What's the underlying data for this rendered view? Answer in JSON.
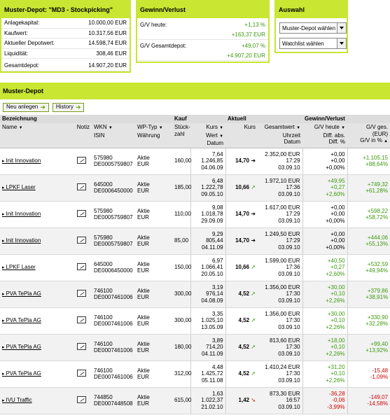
{
  "depot": {
    "title": "Muster-Depot: \"MD3 - Stockpicking\"",
    "rows": [
      {
        "label": "Anlagekapital:",
        "value": "10.000,00 EUR"
      },
      {
        "label": "Kaufwert:",
        "value": "10.317,56 EUR"
      },
      {
        "label": "Aktueller Depotwert:",
        "value": "14.598,74 EUR"
      },
      {
        "label": "Liquidität:",
        "value": "308,46 EUR"
      },
      {
        "label": "Gesamtdepot:",
        "value": "14.907,20 EUR"
      }
    ]
  },
  "gv": {
    "title": "Gewinn/Verlust",
    "heute_label": "G/V heute:",
    "heute_pct": "+1,13 %",
    "heute_abs": "+163,37 EUR",
    "gesamt_label": "G/V Gesamtdepot:",
    "gesamt_pct": "+49,07 %",
    "gesamt_abs": "+4.907,20 EUR"
  },
  "auswahl": {
    "title": "Auswahl",
    "select1": "Muster-Depot wählen",
    "select2": "Watchlist wählen"
  },
  "main": {
    "title": "Muster-Depot",
    "btn_new": "Neu anlegen",
    "btn_history": "History"
  },
  "cols": {
    "g_bez": "Bezeichnung",
    "g_kauf": "Kauf",
    "g_akt": "Aktuell",
    "g_gv": "Gewinn/Verlust",
    "name": "Name",
    "notiz": "Notiz",
    "wkn": "WKN",
    "isin": "ISIN",
    "wptyp": "WP-Typ",
    "waehrung": "Währung",
    "stueck": "Stück-",
    "zahl": "zahl",
    "kurs": "Kurs",
    "wert": "Wert",
    "datum": "Datum",
    "akurs": "Kurs",
    "gesamtwert": "Gesamtwert",
    "uhrzeit": "Uhrzeit",
    "adatum": "Datum",
    "gvheute": "G/V heute",
    "diffabs": "Diff. abs.",
    "diffpct": "Diff. %",
    "gvges": "G/V ges.",
    "gveur": "(EUR)",
    "gvpct": "G/V in %"
  },
  "positions": [
    {
      "name": "Init Innovation",
      "wkn": "575980",
      "isin": "DE0005759807",
      "typ": "Aktie",
      "cur": "EUR",
      "qty": "160,00",
      "bkurs": "7,64",
      "bwert": "1.246,85",
      "bdat": "04.06.09",
      "akurs": "14,70",
      "trend": "right",
      "gwert": "2.352,00 EUR",
      "zeit": "17:29",
      "adat": "03.09.10",
      "h1": "+0,00",
      "h2": "+0,00",
      "h3": "+0,00%",
      "g1": "+1.105,15",
      "g2": "+88,64%",
      "dir": "g"
    },
    {
      "name": "LPKF Laser",
      "wkn": "645000",
      "isin": "DE0006450000",
      "typ": "Aktie",
      "cur": "EUR",
      "qty": "185,00",
      "bkurs": "6,48",
      "bwert": "1.222,78",
      "bdat": "09.05.10",
      "akurs": "10,66",
      "trend": "up",
      "gwert": "1.972,10 EUR",
      "zeit": "17:36",
      "adat": "03.09.10",
      "h1": "+49,95",
      "h2": "+0,27",
      "h3": "+2,60%",
      "g1": "+749,32",
      "g2": "+61,28%",
      "dir": "g"
    },
    {
      "name": "Init Innovation",
      "wkn": "575980",
      "isin": "DE0005759807",
      "typ": "Aktie",
      "cur": "EUR",
      "qty": "110,00",
      "bkurs": "9,08",
      "bwert": "1.018,78",
      "bdat": "29.09.09",
      "akurs": "14,70",
      "trend": "right",
      "gwert": "1.617,00 EUR",
      "zeit": "17:29",
      "adat": "03.09.10",
      "h1": "+0,00",
      "h2": "+0,00",
      "h3": "+0,00%",
      "g1": "+598,22",
      "g2": "+58,72%",
      "dir": "g"
    },
    {
      "name": "Init Innovation",
      "wkn": "575980",
      "isin": "DE0005759807",
      "typ": "Aktie",
      "cur": "EUR",
      "qty": "85,00",
      "bkurs": "9,29",
      "bwert": "805,44",
      "bdat": "04.11.09",
      "akurs": "14,70",
      "trend": "right",
      "gwert": "1.249,50 EUR",
      "zeit": "17:29",
      "adat": "03.09.10",
      "h1": "+0,00",
      "h2": "+0,00",
      "h3": "+0,00%",
      "g1": "+444,06",
      "g2": "+55,13%",
      "dir": "g"
    },
    {
      "name": "LPKF Laser",
      "wkn": "645000",
      "isin": "DE0006450000",
      "typ": "Aktie",
      "cur": "EUR",
      "qty": "150,00",
      "bkurs": "6,97",
      "bwert": "1.066,41",
      "bdat": "20.05.10",
      "akurs": "10,66",
      "trend": "up",
      "gwert": "1.599,00 EUR",
      "zeit": "17:36",
      "adat": "03.09.10",
      "h1": "+40,50",
      "h2": "+0,27",
      "h3": "+2,60%",
      "g1": "+532,59",
      "g2": "+49,94%",
      "dir": "g"
    },
    {
      "name": "PVA TePla AG",
      "wkn": "746100",
      "isin": "DE0007461006",
      "typ": "Aktie",
      "cur": "EUR",
      "qty": "300,00",
      "bkurs": "3,19",
      "bwert": "976,14",
      "bdat": "04.08.09",
      "akurs": "4,52",
      "trend": "up",
      "gwert": "1.356,00 EUR",
      "zeit": "17:30",
      "adat": "03.09.10",
      "h1": "+30,00",
      "h2": "+0,10",
      "h3": "+2,26%",
      "g1": "+379,86",
      "g2": "+38,91%",
      "dir": "g"
    },
    {
      "name": "PVA TePla AG",
      "wkn": "746100",
      "isin": "DE0007461006",
      "typ": "Aktie",
      "cur": "EUR",
      "qty": "300,00",
      "bkurs": "3,35",
      "bwert": "1.025,10",
      "bdat": "13.05.09",
      "akurs": "4,52",
      "trend": "up",
      "gwert": "1.356,00 EUR",
      "zeit": "17:30",
      "adat": "03.09.10",
      "h1": "+30,00",
      "h2": "+0,10",
      "h3": "+2,26%",
      "g1": "+330,90",
      "g2": "+32,28%",
      "dir": "g"
    },
    {
      "name": "PVA TePla AG",
      "wkn": "746100",
      "isin": "DE0007461006",
      "typ": "Aktie",
      "cur": "EUR",
      "qty": "180,00",
      "bkurs": "3,89",
      "bwert": "714,20",
      "bdat": "04.11.09",
      "akurs": "4,52",
      "trend": "up",
      "gwert": "813,60 EUR",
      "zeit": "17:30",
      "adat": "03.09.10",
      "h1": "+18,00",
      "h2": "+0,10",
      "h3": "+2,26%",
      "g1": "+99,40",
      "g2": "+13,92%",
      "dir": "g"
    },
    {
      "name": "PVA TePla AG",
      "wkn": "746100",
      "isin": "DE0007461006",
      "typ": "Aktie",
      "cur": "EUR",
      "qty": "312,00",
      "bkurs": "4,48",
      "bwert": "1.425,72",
      "bdat": "05.11.08",
      "akurs": "4,52",
      "trend": "up",
      "gwert": "1.410,24 EUR",
      "zeit": "17:30",
      "adat": "03.09.10",
      "h1": "+31,20",
      "h2": "+0,10",
      "h3": "+2,26%",
      "g1": "-15,48",
      "g2": "-1,09%",
      "dir": "mixed"
    },
    {
      "name": "IVU Traffic",
      "wkn": "744850",
      "isin": "DE0007448508",
      "typ": "Aktie",
      "cur": "EUR",
      "qty": "615,00",
      "bkurs": "1,63",
      "bwert": "1.022,37",
      "bdat": "21.02.10",
      "akurs": "1,42",
      "trend": "down",
      "gwert": "873,30 EUR",
      "zeit": "16:57",
      "adat": "03.09.10",
      "h1": "-36,28",
      "h2": "-0,06",
      "h3": "-3,99%",
      "g1": "-149,07",
      "g2": "-14,58%",
      "dir": "r"
    }
  ]
}
